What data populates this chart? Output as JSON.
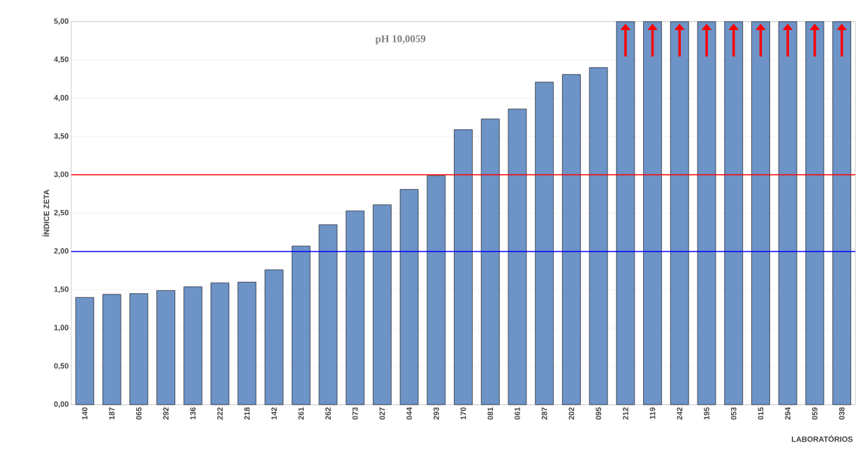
{
  "chart_data": {
    "type": "bar",
    "title": "pH 10,0059",
    "xlabel": "LABORATÓRIOS",
    "ylabel": "ÍNDICE ZETA",
    "categories": [
      "140",
      "187",
      "065",
      "292",
      "136",
      "222",
      "218",
      "142",
      "261",
      "262",
      "073",
      "027",
      "044",
      "293",
      "170",
      "081",
      "061",
      "287",
      "202",
      "095",
      "212",
      "119",
      "242",
      "195",
      "053",
      "015",
      "294",
      "059",
      "038"
    ],
    "values": [
      1.4,
      1.44,
      1.45,
      1.49,
      1.54,
      1.59,
      1.6,
      1.76,
      2.07,
      2.35,
      2.53,
      2.61,
      2.81,
      2.99,
      3.59,
      3.73,
      3.86,
      4.21,
      4.31,
      4.4,
      5.0,
      5.0,
      5.0,
      5.0,
      5.0,
      5.0,
      5.0,
      5.0,
      5.0
    ],
    "color": "#6d93c7",
    "ylim": [
      0,
      5
    ],
    "yticks": [
      {
        "value": 0,
        "label": "0,00"
      },
      {
        "value": 0.5,
        "label": "0,50"
      },
      {
        "value": 1,
        "label": "1,00"
      },
      {
        "value": 1.5,
        "label": "1,50"
      },
      {
        "value": 2,
        "label": "2,00"
      },
      {
        "value": 2.5,
        "label": "2,50"
      },
      {
        "value": 3,
        "label": "3,00"
      },
      {
        "value": 3.5,
        "label": "3,50"
      },
      {
        "value": 4,
        "label": "4,00"
      },
      {
        "value": 4.5,
        "label": "4,50"
      },
      {
        "value": 5,
        "label": "5,00"
      }
    ],
    "grid": "y",
    "ref_lines": [
      {
        "axis": "y",
        "value": 3,
        "color": "#ff0000"
      },
      {
        "axis": "y",
        "value": 2,
        "color": "#0000ff"
      }
    ]
  }
}
